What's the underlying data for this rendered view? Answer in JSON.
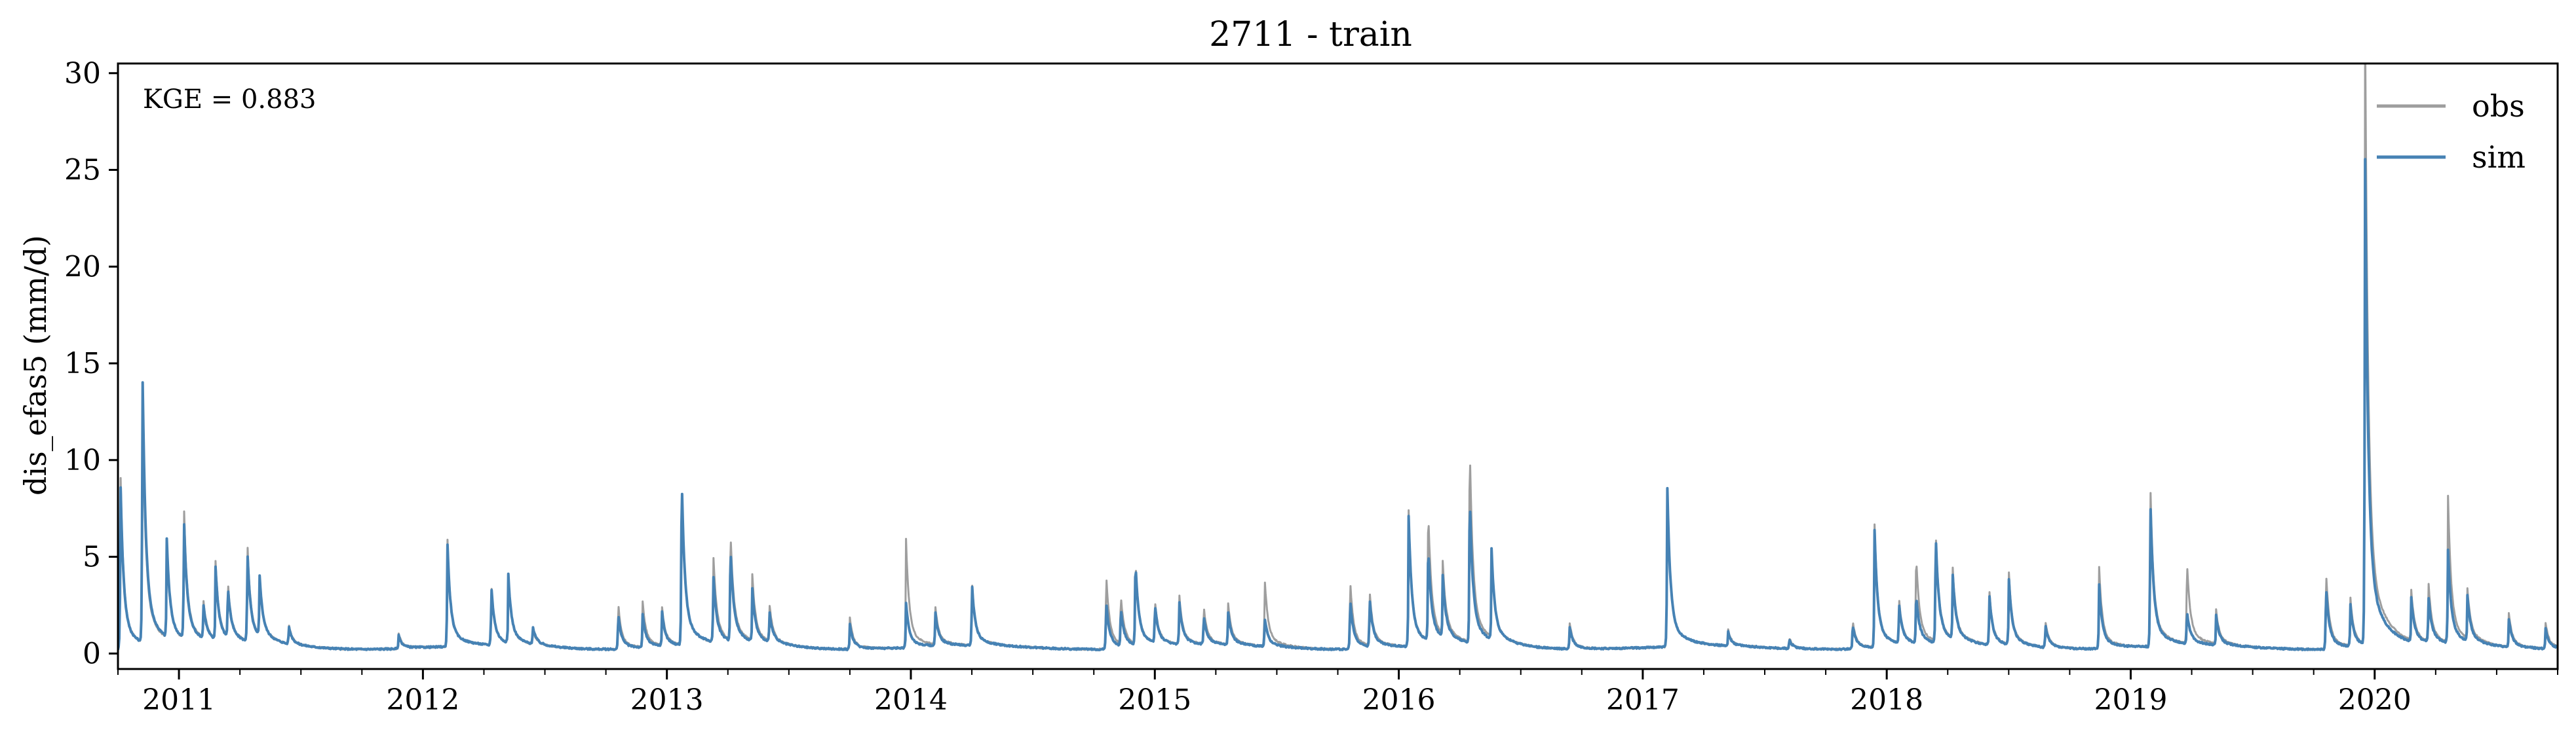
{
  "chart_data": {
    "type": "line",
    "title": "2711 - train",
    "xlabel": "",
    "ylabel": "dis_efas5 (mm/d)",
    "annotation": "KGE = 0.883",
    "xlim": [
      2010.75,
      2020.75
    ],
    "ylim": [
      -0.8,
      30.5
    ],
    "x_ticks": [
      2011,
      2012,
      2013,
      2014,
      2015,
      2016,
      2017,
      2018,
      2019,
      2020
    ],
    "x_tick_labels": [
      "2011",
      "2012",
      "2013",
      "2014",
      "2015",
      "2016",
      "2017",
      "2018",
      "2019",
      "2020"
    ],
    "y_ticks": [
      0,
      5,
      10,
      15,
      20,
      25,
      30
    ],
    "y_tick_labels": [
      "0",
      "5",
      "10",
      "15",
      "20",
      "25",
      "30"
    ],
    "legend_position": "top-right",
    "grid": false,
    "baseflow": 0.3,
    "series": [
      {
        "name": "obs",
        "color": "#9e9e9e",
        "peaks": [
          [
            2010.76,
            8.3
          ],
          [
            2010.85,
            11.5
          ],
          [
            2010.95,
            4.5
          ],
          [
            2011.02,
            6.4
          ],
          [
            2011.1,
            2.0
          ],
          [
            2011.15,
            3.7
          ],
          [
            2011.2,
            2.8
          ],
          [
            2011.28,
            4.8
          ],
          [
            2011.33,
            3.0
          ],
          [
            2011.45,
            1.2
          ],
          [
            2011.9,
            1.0
          ],
          [
            2012.1,
            5.2
          ],
          [
            2012.28,
            3.0
          ],
          [
            2012.35,
            3.2
          ],
          [
            2012.45,
            1.0
          ],
          [
            2012.8,
            2.4
          ],
          [
            2012.9,
            2.4
          ],
          [
            2012.98,
            2.0
          ],
          [
            2013.06,
            7.8
          ],
          [
            2013.19,
            4.3
          ],
          [
            2013.26,
            5.3
          ],
          [
            2013.35,
            3.2
          ],
          [
            2013.42,
            2.0
          ],
          [
            2013.75,
            1.7
          ],
          [
            2013.98,
            5.1
          ],
          [
            2014.1,
            2.0
          ],
          [
            2014.25,
            3.2
          ],
          [
            2014.8,
            3.8
          ],
          [
            2014.86,
            2.5
          ],
          [
            2014.92,
            4.1
          ],
          [
            2015.0,
            2.2
          ],
          [
            2015.1,
            2.5
          ],
          [
            2015.2,
            2.0
          ],
          [
            2015.3,
            2.2
          ],
          [
            2015.45,
            3.4
          ],
          [
            2015.8,
            3.5
          ],
          [
            2015.88,
            2.8
          ],
          [
            2016.04,
            6.4
          ],
          [
            2016.12,
            6.3
          ],
          [
            2016.18,
            3.5
          ],
          [
            2016.29,
            9.5
          ],
          [
            2016.38,
            4.0
          ],
          [
            2016.7,
            1.5
          ],
          [
            2017.1,
            7.5
          ],
          [
            2017.35,
            1.0
          ],
          [
            2017.6,
            0.8
          ],
          [
            2017.86,
            1.6
          ],
          [
            2017.95,
            5.7
          ],
          [
            2018.05,
            2.3
          ],
          [
            2018.12,
            4.3
          ],
          [
            2018.2,
            5.4
          ],
          [
            2018.27,
            3.5
          ],
          [
            2018.42,
            2.8
          ],
          [
            2018.5,
            3.6
          ],
          [
            2018.65,
            1.5
          ],
          [
            2018.87,
            4.0
          ],
          [
            2019.08,
            7.8
          ],
          [
            2019.23,
            4.1
          ],
          [
            2019.35,
            1.8
          ],
          [
            2019.8,
            3.9
          ],
          [
            2019.9,
            2.5
          ],
          [
            2019.96,
            29.1
          ],
          [
            2020.15,
            2.5
          ],
          [
            2020.22,
            3.0
          ],
          [
            2020.3,
            7.0
          ],
          [
            2020.38,
            2.5
          ],
          [
            2020.55,
            1.8
          ],
          [
            2020.7,
            1.5
          ]
        ]
      },
      {
        "name": "sim",
        "color": "#4682b4",
        "peaks": [
          [
            2010.76,
            7.9
          ],
          [
            2010.85,
            12.8
          ],
          [
            2010.95,
            4.6
          ],
          [
            2011.02,
            5.7
          ],
          [
            2011.1,
            1.8
          ],
          [
            2011.15,
            3.5
          ],
          [
            2011.2,
            2.6
          ],
          [
            2011.28,
            4.4
          ],
          [
            2011.33,
            3.1
          ],
          [
            2011.45,
            1.1
          ],
          [
            2011.9,
            0.9
          ],
          [
            2012.1,
            5.0
          ],
          [
            2012.28,
            3.0
          ],
          [
            2012.35,
            3.3
          ],
          [
            2012.45,
            1.1
          ],
          [
            2012.8,
            1.9
          ],
          [
            2012.9,
            1.8
          ],
          [
            2012.98,
            1.8
          ],
          [
            2013.06,
            8.1
          ],
          [
            2013.19,
            3.4
          ],
          [
            2013.26,
            4.6
          ],
          [
            2013.35,
            2.6
          ],
          [
            2013.42,
            1.7
          ],
          [
            2013.75,
            1.4
          ],
          [
            2013.98,
            2.3
          ],
          [
            2014.1,
            1.8
          ],
          [
            2014.25,
            3.1
          ],
          [
            2014.8,
            2.5
          ],
          [
            2014.86,
            2.0
          ],
          [
            2014.92,
            4.1
          ],
          [
            2015.0,
            2.0
          ],
          [
            2015.1,
            2.2
          ],
          [
            2015.2,
            1.6
          ],
          [
            2015.3,
            1.8
          ],
          [
            2015.45,
            1.6
          ],
          [
            2015.8,
            2.6
          ],
          [
            2015.88,
            2.5
          ],
          [
            2016.04,
            6.2
          ],
          [
            2016.12,
            4.6
          ],
          [
            2016.18,
            3.0
          ],
          [
            2016.29,
            7.1
          ],
          [
            2016.38,
            4.3
          ],
          [
            2016.7,
            1.3
          ],
          [
            2017.1,
            7.6
          ],
          [
            2017.35,
            0.9
          ],
          [
            2017.6,
            0.7
          ],
          [
            2017.86,
            1.4
          ],
          [
            2017.95,
            5.4
          ],
          [
            2018.05,
            2.1
          ],
          [
            2018.12,
            2.5
          ],
          [
            2018.2,
            5.3
          ],
          [
            2018.27,
            3.2
          ],
          [
            2018.42,
            2.6
          ],
          [
            2018.5,
            3.3
          ],
          [
            2018.65,
            1.3
          ],
          [
            2018.87,
            3.2
          ],
          [
            2019.08,
            7.0
          ],
          [
            2019.23,
            1.8
          ],
          [
            2019.35,
            1.6
          ],
          [
            2019.8,
            3.2
          ],
          [
            2019.9,
            2.2
          ],
          [
            2019.96,
            23.0
          ],
          [
            2020.15,
            2.2
          ],
          [
            2020.22,
            2.4
          ],
          [
            2020.3,
            4.6
          ],
          [
            2020.38,
            2.3
          ],
          [
            2020.55,
            1.5
          ],
          [
            2020.7,
            1.2
          ]
        ]
      }
    ]
  }
}
